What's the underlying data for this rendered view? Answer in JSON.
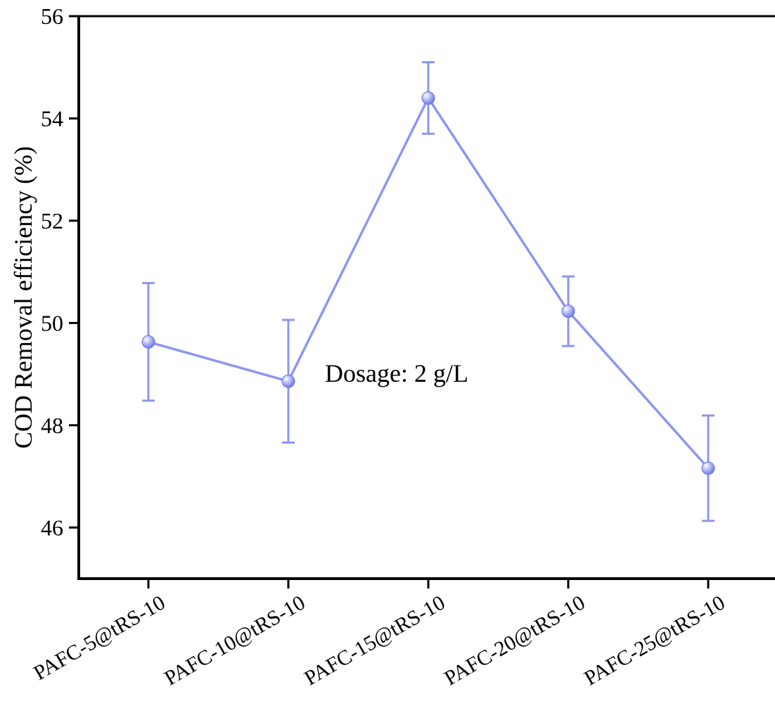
{
  "chart_data": {
    "type": "line",
    "title": "",
    "xlabel": "",
    "ylabel": "COD Removal efficiency (%)",
    "ylim": [
      45,
      56
    ],
    "yticks": [
      46,
      48,
      50,
      52,
      54,
      56
    ],
    "categories": [
      "PAFC-5@tRS-10",
      "PAFC-10@tRS-10",
      "PAFC-15@tRS-10",
      "PAFC-20@tRS-10",
      "PAFC-25@tRS-10"
    ],
    "series": [
      {
        "values": [
          49.63,
          48.86,
          54.4,
          50.23,
          47.16
        ],
        "error": [
          1.15,
          1.2,
          0.7,
          0.68,
          1.03
        ],
        "color": "#8c96f0"
      }
    ],
    "annotations": [
      {
        "text": "Dosage: 2 g/L",
        "x": "PAFC-10@tRS-10",
        "y": 48.9
      }
    ],
    "grid": false,
    "legend": "none"
  }
}
